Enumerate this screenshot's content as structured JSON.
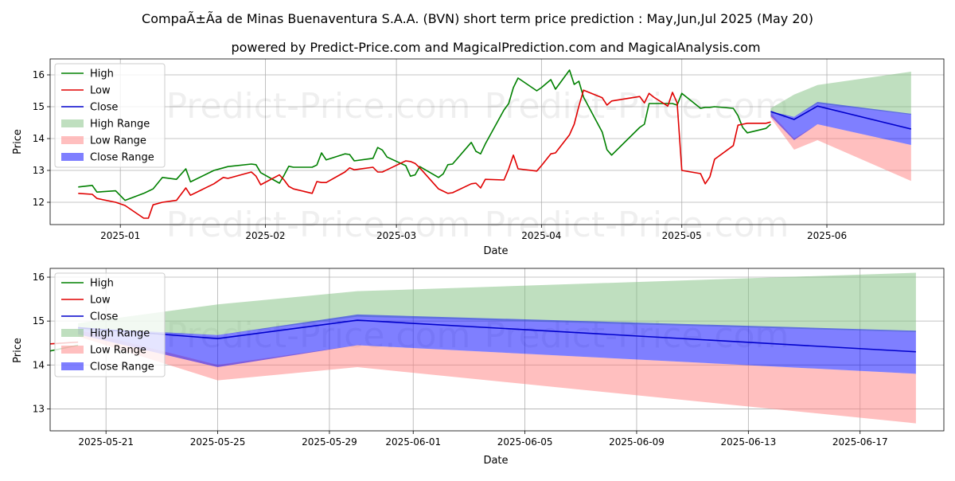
{
  "chart_data": [
    {
      "type": "line",
      "title": "CompaÃ±Ã­a de Minas Buenaventura S.A.A. (BVN) short term price prediction : May,Jun,Jul 2025 (May 20)",
      "subtitle": "powered by Predict-Price.com and MagicalPrediction.com and MagicalAnalysis.com",
      "xlabel": "Date",
      "ylabel": "Price",
      "xlim": [
        "2024-12-17",
        "2025-06-26"
      ],
      "ylim": [
        11.3,
        16.5
      ],
      "xticks": [
        "2025-01-01",
        "2025-02-01",
        "2025-03-01",
        "2025-04-01",
        "2025-05-01",
        "2025-06-01"
      ],
      "xtick_labels": [
        "2025-01",
        "2025-02",
        "2025-03",
        "2025-04",
        "2025-05",
        "2025-06"
      ],
      "yticks": [
        12,
        13,
        14,
        15,
        16
      ],
      "watermarks": [
        "Predict-Price.com",
        "Predict-Price.com",
        "Predict-Price.com",
        "Predict-Price.com"
      ],
      "legend": [
        "High",
        "Low",
        "Close",
        "High Range",
        "Low Range",
        "Close Range"
      ],
      "colors": {
        "high": "#008000",
        "low": "#e00000",
        "close": "#0000cc",
        "high_range": "#7fbf7f",
        "low_range": "#ff7f7f",
        "close_range": "#0000ff"
      },
      "series": [
        {
          "name": "High",
          "x": [
            "2024-12-23",
            "2024-12-26",
            "2024-12-27",
            "2024-12-31",
            "2025-01-02",
            "2025-01-06",
            "2025-01-07",
            "2025-01-08",
            "2025-01-10",
            "2025-01-13",
            "2025-01-15",
            "2025-01-16",
            "2025-01-21",
            "2025-01-23",
            "2025-01-24",
            "2025-01-29",
            "2025-01-30",
            "2025-01-31",
            "2025-02-04",
            "2025-02-05",
            "2025-02-06",
            "2025-02-07",
            "2025-02-11",
            "2025-02-12",
            "2025-02-13",
            "2025-02-14",
            "2025-02-18",
            "2025-02-19",
            "2025-02-20",
            "2025-02-24",
            "2025-02-25",
            "2025-02-26",
            "2025-02-27",
            "2025-03-03",
            "2025-03-04",
            "2025-03-05",
            "2025-03-06",
            "2025-03-10",
            "2025-03-11",
            "2025-03-12",
            "2025-03-13",
            "2025-03-17",
            "2025-03-18",
            "2025-03-19",
            "2025-03-20",
            "2025-03-24",
            "2025-03-25",
            "2025-03-26",
            "2025-03-27",
            "2025-03-31",
            "2025-04-01",
            "2025-04-03",
            "2025-04-04",
            "2025-04-07",
            "2025-04-08",
            "2025-04-09",
            "2025-04-10",
            "2025-04-14",
            "2025-04-15",
            "2025-04-16",
            "2025-04-22",
            "2025-04-23",
            "2025-04-24",
            "2025-04-25",
            "2025-04-28",
            "2025-04-29",
            "2025-04-30",
            "2025-05-01",
            "2025-05-05",
            "2025-05-06",
            "2025-05-07",
            "2025-05-08",
            "2025-05-12",
            "2025-05-13",
            "2025-05-14",
            "2025-05-15",
            "2025-05-19",
            "2025-05-20"
          ],
          "values": [
            12.48,
            12.53,
            12.32,
            12.36,
            12.06,
            12.28,
            12.35,
            12.42,
            12.78,
            12.72,
            13.05,
            12.64,
            13.0,
            13.08,
            13.12,
            13.2,
            13.18,
            12.93,
            12.6,
            12.85,
            13.13,
            13.1,
            13.1,
            13.17,
            13.55,
            13.33,
            13.52,
            13.5,
            13.3,
            13.38,
            13.72,
            13.64,
            13.42,
            13.15,
            12.82,
            12.86,
            13.12,
            12.78,
            12.89,
            13.18,
            13.2,
            13.88,
            13.6,
            13.52,
            13.83,
            14.9,
            15.1,
            15.6,
            15.9,
            15.5,
            15.6,
            15.85,
            15.55,
            16.15,
            15.7,
            15.8,
            15.3,
            14.2,
            13.65,
            13.48,
            14.35,
            14.45,
            15.1,
            15.1,
            15.1,
            15.1,
            15.05,
            15.42,
            14.95,
            14.98,
            14.98,
            15.0,
            14.95,
            14.72,
            14.35,
            14.18,
            14.32,
            14.45
          ]
        },
        {
          "name": "Low",
          "x": [
            "2024-12-23",
            "2024-12-26",
            "2024-12-27",
            "2024-12-31",
            "2025-01-02",
            "2025-01-06",
            "2025-01-07",
            "2025-01-08",
            "2025-01-10",
            "2025-01-13",
            "2025-01-15",
            "2025-01-16",
            "2025-01-21",
            "2025-01-23",
            "2025-01-24",
            "2025-01-29",
            "2025-01-30",
            "2025-01-31",
            "2025-02-04",
            "2025-02-05",
            "2025-02-06",
            "2025-02-07",
            "2025-02-11",
            "2025-02-12",
            "2025-02-13",
            "2025-02-14",
            "2025-02-18",
            "2025-02-19",
            "2025-02-20",
            "2025-02-24",
            "2025-02-25",
            "2025-02-26",
            "2025-02-27",
            "2025-03-03",
            "2025-03-04",
            "2025-03-05",
            "2025-03-06",
            "2025-03-10",
            "2025-03-11",
            "2025-03-12",
            "2025-03-13",
            "2025-03-17",
            "2025-03-18",
            "2025-03-19",
            "2025-03-20",
            "2025-03-24",
            "2025-03-25",
            "2025-03-26",
            "2025-03-27",
            "2025-03-31",
            "2025-04-01",
            "2025-04-03",
            "2025-04-04",
            "2025-04-07",
            "2025-04-08",
            "2025-04-09",
            "2025-04-10",
            "2025-04-14",
            "2025-04-15",
            "2025-04-16",
            "2025-04-22",
            "2025-04-23",
            "2025-04-24",
            "2025-04-25",
            "2025-04-28",
            "2025-04-29",
            "2025-04-30",
            "2025-05-01",
            "2025-05-05",
            "2025-05-06",
            "2025-05-07",
            "2025-05-08",
            "2025-05-12",
            "2025-05-13",
            "2025-05-14",
            "2025-05-15",
            "2025-05-19",
            "2025-05-20"
          ],
          "values": [
            12.28,
            12.25,
            12.12,
            12.0,
            11.9,
            11.5,
            11.5,
            11.92,
            12.0,
            12.06,
            12.45,
            12.22,
            12.58,
            12.78,
            12.75,
            12.95,
            12.82,
            12.55,
            12.86,
            12.7,
            12.5,
            12.42,
            12.28,
            12.65,
            12.62,
            12.62,
            12.95,
            13.08,
            13.02,
            13.1,
            12.95,
            12.95,
            13.02,
            13.3,
            13.28,
            13.22,
            13.08,
            12.42,
            12.35,
            12.28,
            12.3,
            12.58,
            12.6,
            12.45,
            12.72,
            12.7,
            13.05,
            13.48,
            13.05,
            12.98,
            13.15,
            13.52,
            13.55,
            14.12,
            14.45,
            15.02,
            15.52,
            15.28,
            15.05,
            15.18,
            15.32,
            15.12,
            15.42,
            15.3,
            15.02,
            15.45,
            15.12,
            13.0,
            12.9,
            12.58,
            12.8,
            13.35,
            13.78,
            14.42,
            14.45,
            14.48,
            14.48,
            14.52
          ]
        }
      ]
    },
    {
      "type": "line",
      "xlabel": "Date",
      "ylabel": "Price",
      "xlim": [
        "2025-05-19",
        "2025-06-20"
      ],
      "ylim": [
        12.5,
        16.2
      ],
      "xticks": [
        "2025-05-21",
        "2025-05-25",
        "2025-05-29",
        "2025-06-01",
        "2025-06-05",
        "2025-06-09",
        "2025-06-13",
        "2025-06-17"
      ],
      "xtick_labels": [
        "2025-05-21",
        "2025-05-25",
        "2025-05-29",
        "2025-06-01",
        "2025-06-05",
        "2025-06-09",
        "2025-06-13",
        "2025-06-17"
      ],
      "yticks": [
        13,
        14,
        15,
        16
      ],
      "watermarks": [
        "Predict-Price.com",
        "Predict-Price.com"
      ],
      "legend": [
        "High",
        "Low",
        "Close",
        "High Range",
        "Low Range",
        "Close Range"
      ],
      "forecast": {
        "x": [
          "2025-05-20",
          "2025-05-25",
          "2025-05-30",
          "2025-06-19"
        ],
        "close": [
          14.85,
          14.6,
          15.02,
          14.3
        ],
        "high_range": {
          "lower": [
            14.8,
            14.68,
            15.1,
            14.75
          ],
          "upper": [
            14.95,
            15.38,
            15.68,
            16.1
          ]
        },
        "low_range": {
          "lower": [
            14.65,
            13.65,
            13.95,
            12.67
          ],
          "upper": [
            14.8,
            14.0,
            14.45,
            13.8
          ]
        },
        "close_range": {
          "lower": [
            14.7,
            13.95,
            14.45,
            13.8
          ],
          "upper": [
            14.85,
            14.68,
            15.15,
            14.78
          ]
        }
      }
    }
  ]
}
